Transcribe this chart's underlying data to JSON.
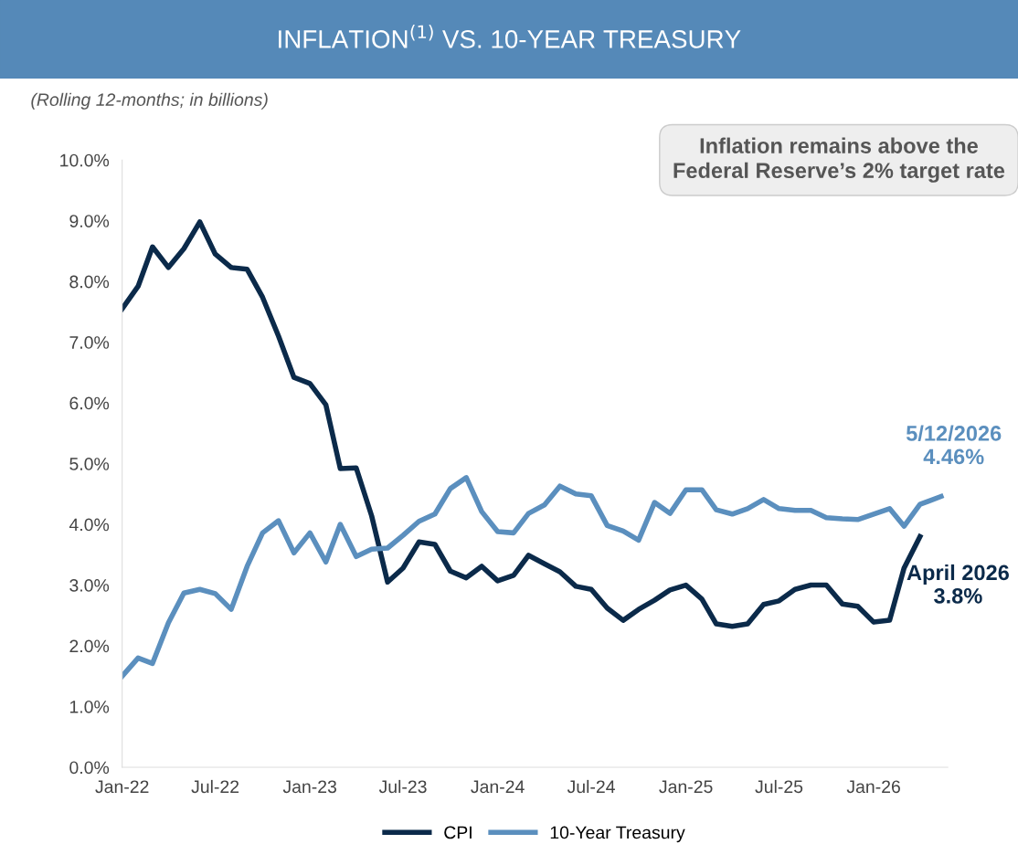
{
  "chart_data": {
    "type": "line",
    "title": "INFLATION$^{(1)}$ VS. 10-YEAR TREASURY",
    "subtitle": "(Rolling 12-months; in billions)",
    "x": [
      "2022-01",
      "2022-02",
      "2022-03",
      "2022-04",
      "2022-05",
      "2022-06",
      "2022-07",
      "2022-08",
      "2022-09",
      "2022-10",
      "2022-11",
      "2022-12",
      "2023-01",
      "2023-02",
      "2023-03",
      "2023-04",
      "2023-05",
      "2023-06",
      "2023-07",
      "2023-08",
      "2023-09",
      "2023-10",
      "2023-11",
      "2023-12",
      "2024-01",
      "2024-02",
      "2024-03",
      "2024-04",
      "2024-05",
      "2024-06",
      "2024-07",
      "2024-08",
      "2024-09",
      "2024-10",
      "2024-11",
      "2024-12",
      "2025-01",
      "2025-02",
      "2025-03",
      "2025-04",
      "2025-05",
      "2025-06",
      "2025-07",
      "2025-08",
      "2025-09",
      "2025-10",
      "2025-11",
      "2025-12",
      "2026-01",
      "2026-02",
      "2026-03",
      "2026-04"
    ],
    "series": [
      {
        "name": "CPI",
        "color": "#0b2a4a",
        "values": [
          7.55,
          7.92,
          8.57,
          8.23,
          8.54,
          8.98,
          8.45,
          8.23,
          8.2,
          7.74,
          7.1,
          6.42,
          6.32,
          5.97,
          4.92,
          4.93,
          4.14,
          3.05,
          3.28,
          3.71,
          3.67,
          3.23,
          3.12,
          3.31,
          3.07,
          3.16,
          3.49,
          3.35,
          3.22,
          2.98,
          2.93,
          2.62,
          2.42,
          2.6,
          2.75,
          2.92,
          3.0,
          2.77,
          2.36,
          2.32,
          2.36,
          2.68,
          2.74,
          2.93,
          3.0,
          3.0,
          2.69,
          2.65,
          2.39,
          2.42,
          3.28,
          3.8
        ]
      },
      {
        "name": "10-Year Treasury",
        "color": "#5b8fbe",
        "x": [
          "2022-01",
          "2022-02",
          "2022-03",
          "2022-04",
          "2022-05",
          "2022-06",
          "2022-07",
          "2022-08",
          "2022-09",
          "2022-10",
          "2022-11",
          "2022-12",
          "2023-01",
          "2023-02",
          "2023-03",
          "2023-04",
          "2023-05",
          "2023-06",
          "2023-07",
          "2023-08",
          "2023-09",
          "2023-10",
          "2023-11",
          "2023-12",
          "2024-01",
          "2024-02",
          "2024-03",
          "2024-04",
          "2024-05",
          "2024-06",
          "2024-07",
          "2024-08",
          "2024-09",
          "2024-10",
          "2024-11",
          "2024-12",
          "2025-01",
          "2025-02",
          "2025-03",
          "2025-04",
          "2025-05",
          "2025-06",
          "2025-07",
          "2025-08",
          "2025-09",
          "2025-10",
          "2025-11",
          "2025-12",
          "2026-01",
          "2026-02",
          "2026-03",
          "2026-04",
          "2026-05-12"
        ],
        "values": [
          1.5,
          1.8,
          1.71,
          2.38,
          2.87,
          2.93,
          2.86,
          2.6,
          3.31,
          3.86,
          4.06,
          3.53,
          3.86,
          3.38,
          4.0,
          3.47,
          3.59,
          3.61,
          3.82,
          4.05,
          4.17,
          4.59,
          4.77,
          4.21,
          3.88,
          3.86,
          4.18,
          4.32,
          4.63,
          4.5,
          4.47,
          3.98,
          3.89,
          3.74,
          4.36,
          4.18,
          4.57,
          4.57,
          4.24,
          4.17,
          4.26,
          4.41,
          4.26,
          4.23,
          4.23,
          4.11,
          4.09,
          4.08,
          4.17,
          4.26,
          3.97,
          4.33,
          4.46
        ]
      }
    ],
    "xlim": [
      "2022-01",
      "2026-05-25"
    ],
    "xticks": [
      {
        "value": "2022-01",
        "label": "Jan-22"
      },
      {
        "value": "2022-07",
        "label": "Jul-22"
      },
      {
        "value": "2023-01",
        "label": "Jan-23"
      },
      {
        "value": "2023-07",
        "label": "Jul-23"
      },
      {
        "value": "2024-01",
        "label": "Jan-24"
      },
      {
        "value": "2024-07",
        "label": "Jul-24"
      },
      {
        "value": "2025-01",
        "label": "Jan-25"
      },
      {
        "value": "2025-07",
        "label": "Jul-25"
      },
      {
        "value": "2026-01",
        "label": "Jan-26"
      }
    ],
    "ylim": [
      0,
      10
    ],
    "yticks": [
      {
        "value": 0,
        "label": "0.0%"
      },
      {
        "value": 1,
        "label": "1.0%"
      },
      {
        "value": 2,
        "label": "2.0%"
      },
      {
        "value": 3,
        "label": "3.0%"
      },
      {
        "value": 4,
        "label": "4.0%"
      },
      {
        "value": 5,
        "label": "5.0%"
      },
      {
        "value": 6,
        "label": "6.0%"
      },
      {
        "value": 7,
        "label": "7.0%"
      },
      {
        "value": 8,
        "label": "8.0%"
      },
      {
        "value": 9,
        "label": "9.0%"
      },
      {
        "value": 10,
        "label": "10.0%"
      }
    ],
    "annotations": [
      "Inflation remains above the Federal Reserve’s 2% target rate",
      {
        "text": "5/12/2026\n4.46%",
        "x": "2026-05-12",
        "y": 4.46
      },
      {
        "text": "April 2026\n3.8%",
        "x": "2026-04",
        "y": 3.8
      }
    ],
    "legend": "bottom",
    "grid": false,
    "marker": "none",
    "line_style": "solid"
  }
}
